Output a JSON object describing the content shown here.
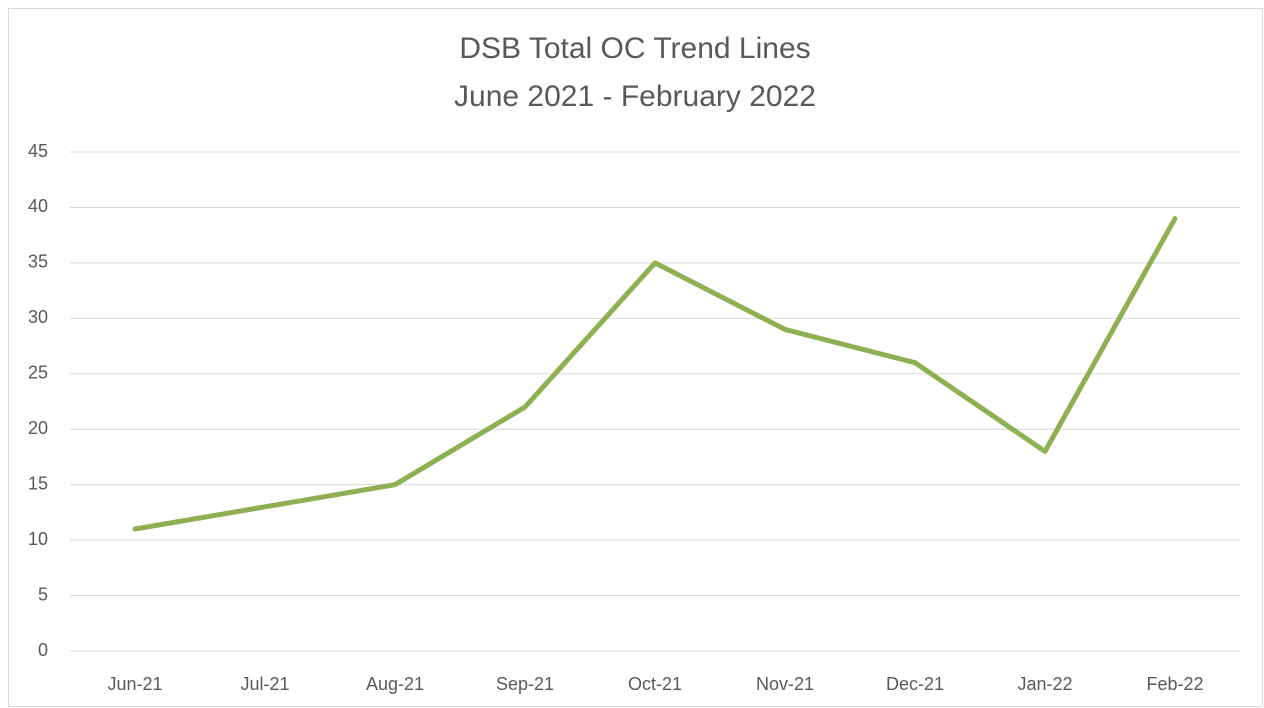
{
  "chart_data": {
    "type": "line",
    "title": "DSB Total OC Trend Lines",
    "subtitle": "June 2021 - February 2022",
    "categories": [
      "Jun-21",
      "Jul-21",
      "Aug-21",
      "Sep-21",
      "Oct-21",
      "Nov-21",
      "Dec-21",
      "Jan-22",
      "Feb-22"
    ],
    "series": [
      {
        "name": "DSB Total OC",
        "color": "#8db052",
        "values": [
          11,
          13,
          15,
          22,
          35,
          29,
          26,
          18,
          39
        ]
      }
    ],
    "ylim": [
      0,
      45
    ],
    "yticks": [
      0,
      5,
      10,
      15,
      20,
      25,
      30,
      35,
      40,
      45
    ],
    "grid": true,
    "legend": false
  }
}
